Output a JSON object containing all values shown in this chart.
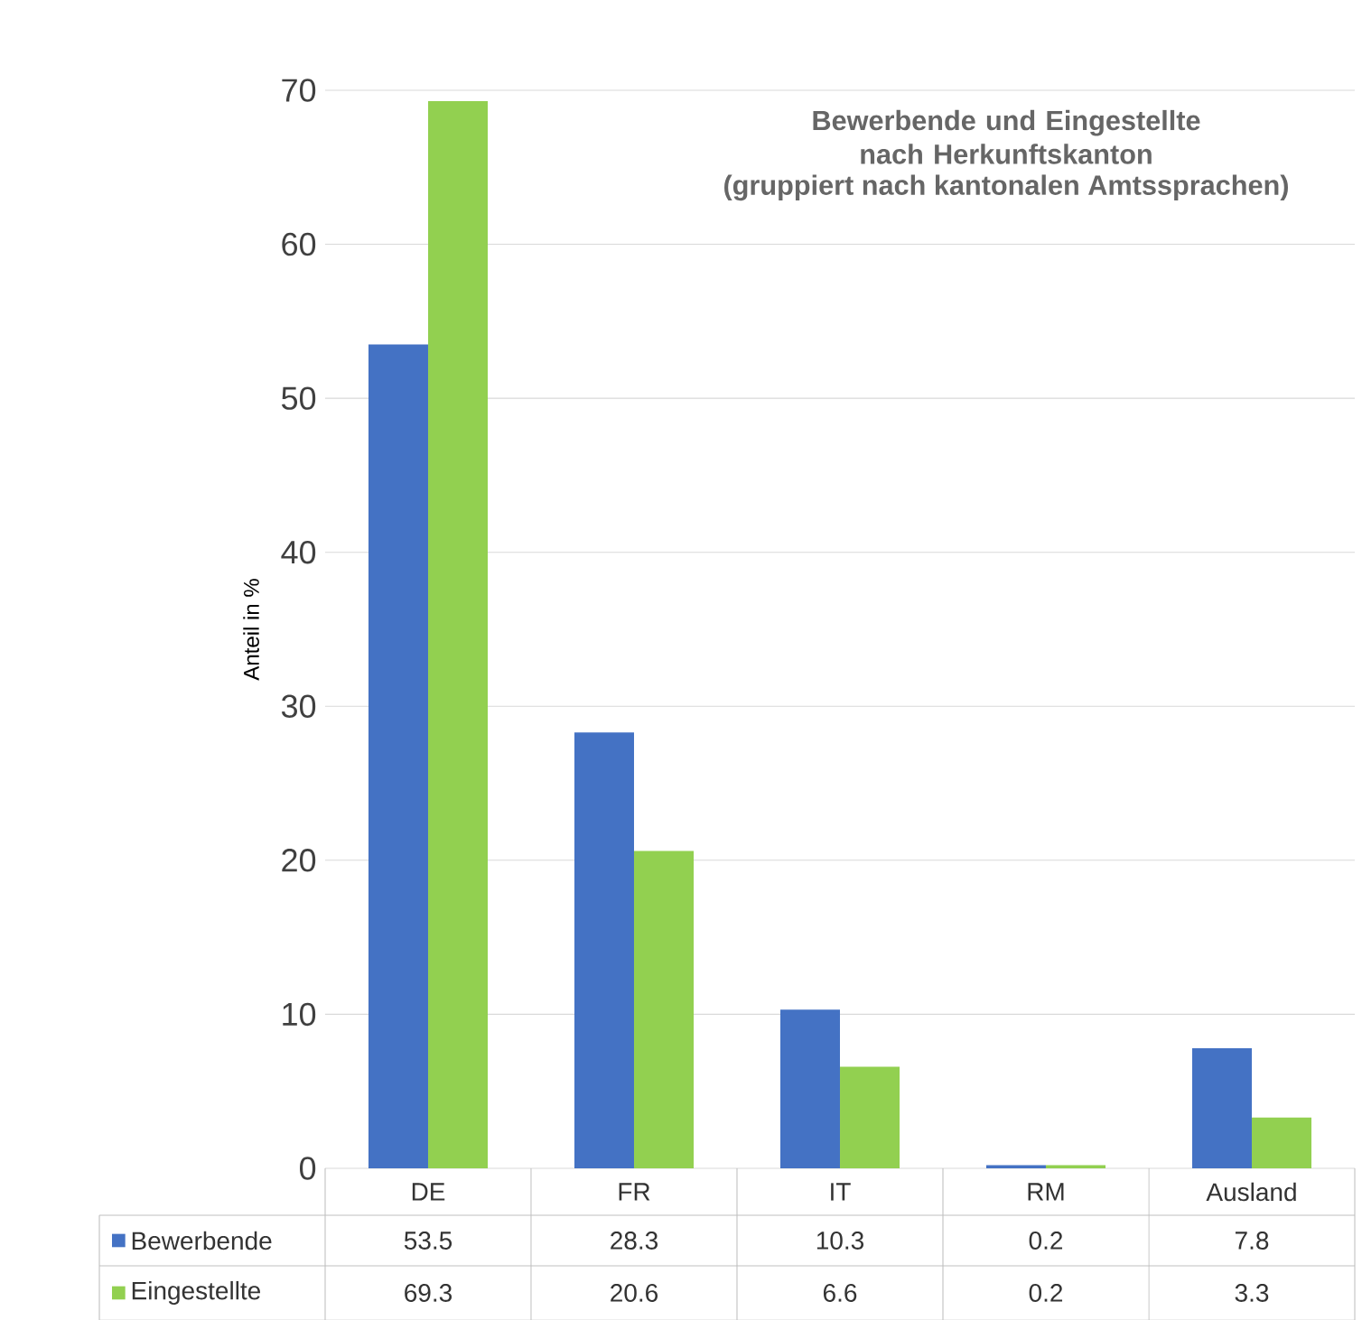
{
  "chart_data": {
    "type": "bar",
    "title": "Bewerbende und Eingestellte nach Herkunftskanton",
    "subtitle": "(gruppiert nach kantonalen Amtssprachen)",
    "ylabel": "Anteil in %",
    "categories": [
      "DE",
      "FR",
      "IT",
      "RM",
      "Ausland"
    ],
    "series": [
      {
        "name": "Bewerbende",
        "color": "#4472c4",
        "values": [
          53.5,
          28.3,
          10.3,
          0.2,
          7.8
        ]
      },
      {
        "name": "Eingestellte",
        "color": "#92d050",
        "values": [
          69.3,
          20.6,
          6.6,
          0.2,
          3.3
        ]
      }
    ],
    "ylim": [
      0,
      70
    ],
    "yticks": [
      0,
      10,
      20,
      30,
      40,
      50,
      60,
      70
    ],
    "grid": "y",
    "data_labels": true,
    "legend": "bottom"
  }
}
